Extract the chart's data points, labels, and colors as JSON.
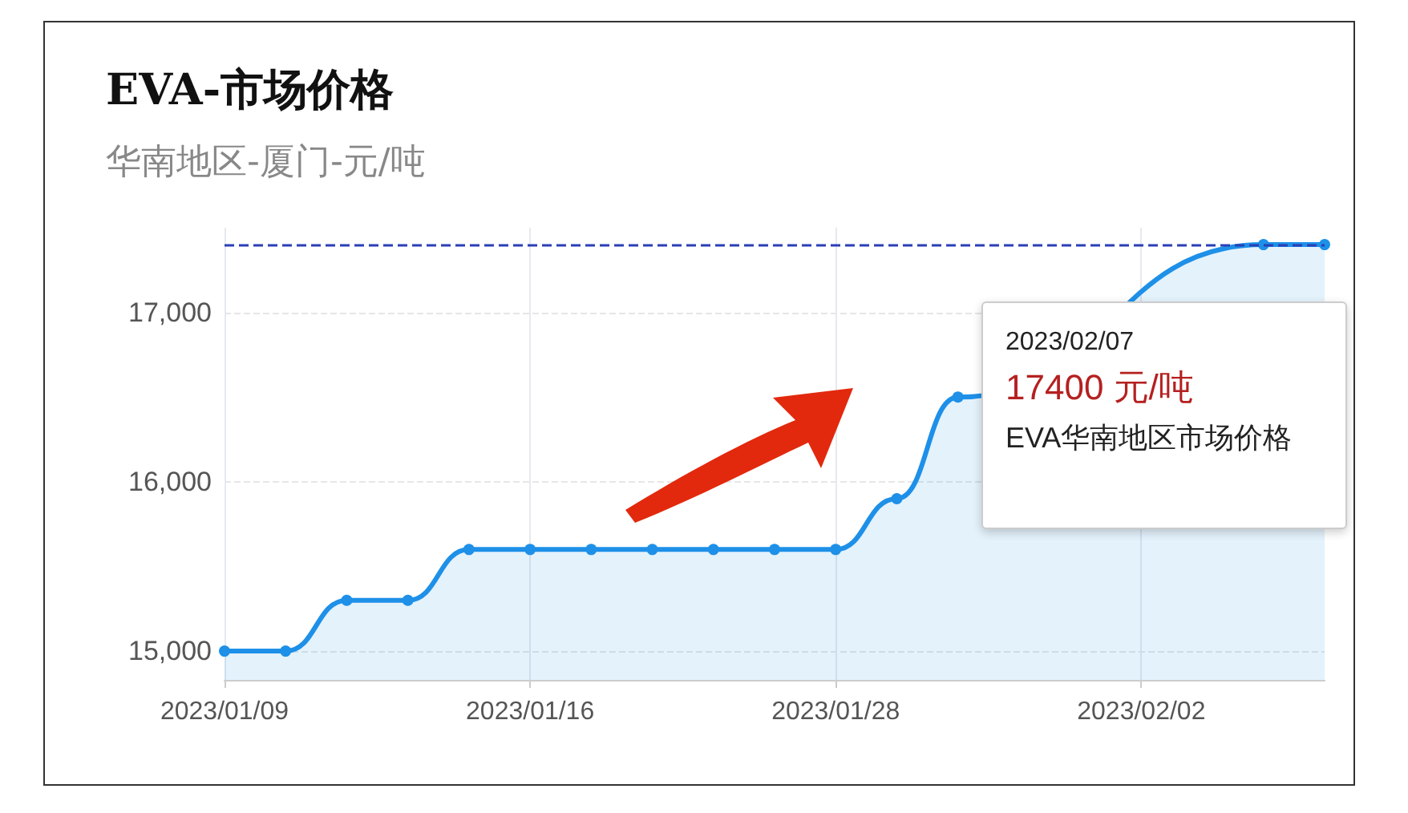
{
  "chart_data": {
    "type": "area",
    "title": "EVA-市场价格",
    "subtitle": "华南地区-厦门-元/吨",
    "categories": [
      "2023/01/09",
      null,
      null,
      null,
      null,
      "2023/01/16",
      null,
      null,
      null,
      null,
      "2023/01/28",
      null,
      null,
      null,
      null,
      "2023/02/02",
      null,
      null,
      null
    ],
    "series": [
      {
        "color": "#1e90e8",
        "values": [
          15000,
          15000,
          15300,
          15300,
          15600,
          15600,
          15600,
          15600,
          15600,
          15600,
          15600,
          15900,
          16500,
          null,
          null,
          null,
          null,
          17400,
          17400
        ]
      }
    ],
    "ylim": [
      14830,
      17500
    ],
    "yticks": [
      {
        "value": 15000,
        "label": "15,000"
      },
      {
        "value": 16000,
        "label": "16,000"
      },
      {
        "value": 17000,
        "label": "17,000"
      }
    ],
    "grid": true,
    "marker": "circle",
    "line_style": "solid",
    "ref_lines": [
      {
        "axis": "y",
        "value": 17400,
        "color": "#2a3fb5",
        "line_style": "dashed"
      }
    ],
    "annotations": [
      "2023/02/07",
      "17400 元/吨",
      "EVA华南地区市场价格"
    ]
  }
}
